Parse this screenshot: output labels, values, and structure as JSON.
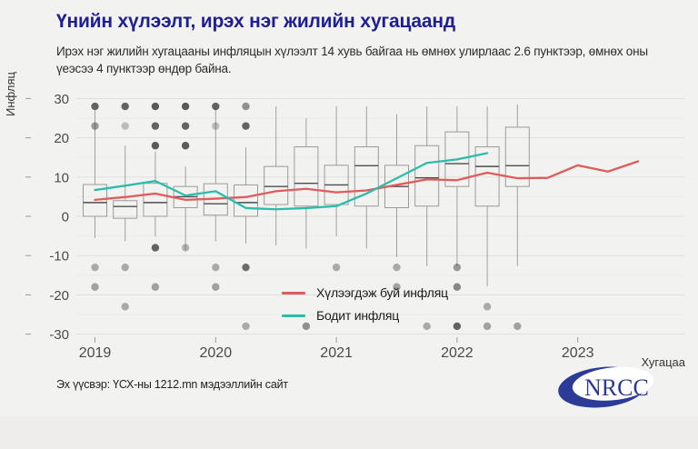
{
  "header": {
    "title": "Үнийн хүлээлт, ирэх нэг жилийн хугацаанд",
    "subtitle": "Ирэх нэг жилийн хугацааны инфляцын хүлээлт 14 хувь байгаа нь өмнөх улирлаас 2.6 пунктээр, өмнөх оны үеэсээ 4 пунктээр өндөр байна."
  },
  "footer": {
    "source": "Эх үүсвэр: ҮСХ-ны 1212.mn мэдээллийн сайт",
    "logo_text": "NRCC"
  },
  "colors": {
    "title": "#1f1f93",
    "expected_line": "#e05c5c",
    "actual_line": "#2bbcab",
    "box_stroke": "#9b9b9b",
    "median": "#4d4d4d",
    "dot": "#3f3f3f",
    "grid_major": "#e0e0df",
    "grid_minor": "#ebebea",
    "tick_text": "#4a4a4a",
    "logo_navy": "#2b3b96"
  },
  "chart_data": {
    "type": "boxplot+line",
    "title": "",
    "xlabel": "Хугацаа",
    "ylabel": "Инфляц",
    "ylim": [
      -30,
      30
    ],
    "y_ticks": [
      30,
      20,
      10,
      0,
      -10,
      -20,
      -30
    ],
    "y_minor_ticks": [
      25,
      15,
      5,
      -5,
      -15,
      -25
    ],
    "x_tick_labels": [
      "2019",
      "2020",
      "2021",
      "2022",
      "2023"
    ],
    "x_tick_quarter_index": [
      0,
      4,
      8,
      12,
      16
    ],
    "quarters": [
      "2019Q1",
      "2019Q2",
      "2019Q3",
      "2019Q4",
      "2020Q1",
      "2020Q2",
      "2020Q3",
      "2020Q4",
      "2021Q1",
      "2021Q2",
      "2021Q3",
      "2021Q4",
      "2022Q1",
      "2022Q2",
      "2022Q3"
    ],
    "boxplots": [
      {
        "quarter": "2019Q1",
        "whisker_low": -5.5,
        "q1": 0.0,
        "median": 3.5,
        "q3": 8.1,
        "whisker_high": 27.0
      },
      {
        "quarter": "2019Q2",
        "whisker_low": -6.3,
        "q1": -0.5,
        "median": 2.5,
        "q3": 4.0,
        "whisker_high": 18.0
      },
      {
        "quarter": "2019Q3",
        "whisker_low": -5.1,
        "q1": 0.0,
        "median": 3.5,
        "q3": 8.4,
        "whisker_high": 16.5
      },
      {
        "quarter": "2019Q4",
        "whisker_low": -8.6,
        "q1": 2.2,
        "median": 5.0,
        "q3": 7.6,
        "whisker_high": 12.7
      },
      {
        "quarter": "2020Q1",
        "whisker_low": -6.3,
        "q1": 0.3,
        "median": 3.2,
        "q3": 8.3,
        "whisker_high": 28.0
      },
      {
        "quarter": "2020Q2",
        "whisker_low": -7.0,
        "q1": 0.0,
        "median": 3.5,
        "q3": 8.0,
        "whisker_high": 17.5
      },
      {
        "quarter": "2020Q3",
        "whisker_low": -7.4,
        "q1": 3.0,
        "median": 7.6,
        "q3": 12.7,
        "whisker_high": 28.0
      },
      {
        "quarter": "2020Q4",
        "whisker_low": -8.2,
        "q1": 2.6,
        "median": 8.4,
        "q3": 17.7,
        "whisker_high": 25.0
      },
      {
        "quarter": "2021Q1",
        "whisker_low": -5.1,
        "q1": 3.0,
        "median": 8.0,
        "q3": 13.0,
        "whisker_high": 28.0
      },
      {
        "quarter": "2021Q2",
        "whisker_low": -8.2,
        "q1": 2.6,
        "median": 12.9,
        "q3": 17.7,
        "whisker_high": 28.0
      },
      {
        "quarter": "2021Q3",
        "whisker_low": -10.4,
        "q1": 2.2,
        "median": 7.6,
        "q3": 13.0,
        "whisker_high": 26.0
      },
      {
        "quarter": "2021Q4",
        "whisker_low": -12.7,
        "q1": 2.6,
        "median": 9.8,
        "q3": 18.0,
        "whisker_high": 28.0
      },
      {
        "quarter": "2022Q1",
        "whisker_low": -12.7,
        "q1": 7.6,
        "median": 13.4,
        "q3": 21.5,
        "whisker_high": 28.0
      },
      {
        "quarter": "2022Q2",
        "whisker_low": -17.8,
        "q1": 2.6,
        "median": 12.7,
        "q3": 17.7,
        "whisker_high": 28.0
      },
      {
        "quarter": "2022Q3",
        "whisker_low": -12.7,
        "q1": 7.6,
        "median": 12.9,
        "q3": 22.7,
        "whisker_high": 28.5
      }
    ],
    "outliers": [
      {
        "qi": 0,
        "value": 28,
        "shade": 0.8
      },
      {
        "qi": 1,
        "value": 28,
        "shade": 0.8
      },
      {
        "qi": 2,
        "value": 28,
        "shade": 0.85
      },
      {
        "qi": 3,
        "value": 28,
        "shade": 0.85
      },
      {
        "qi": 4,
        "value": 28,
        "shade": 0.8
      },
      {
        "qi": 5,
        "value": 28,
        "shade": 0.55
      },
      {
        "qi": 0,
        "value": 23,
        "shade": 0.5
      },
      {
        "qi": 1,
        "value": 23,
        "shade": 0.3
      },
      {
        "qi": 2,
        "value": 23,
        "shade": 0.8
      },
      {
        "qi": 3,
        "value": 23,
        "shade": 0.8
      },
      {
        "qi": 4,
        "value": 23,
        "shade": 0.3
      },
      {
        "qi": 5,
        "value": 23,
        "shade": 0.8
      },
      {
        "qi": 2,
        "value": 18,
        "shade": 0.85
      },
      {
        "qi": 3,
        "value": 18,
        "shade": 0.85
      },
      {
        "qi": 2,
        "value": -8,
        "shade": 0.8
      },
      {
        "qi": 3,
        "value": -8,
        "shade": 0.35
      },
      {
        "qi": 0,
        "value": -13,
        "shade": 0.4
      },
      {
        "qi": 1,
        "value": -13,
        "shade": 0.4
      },
      {
        "qi": 4,
        "value": -13,
        "shade": 0.4
      },
      {
        "qi": 5,
        "value": -13,
        "shade": 0.75
      },
      {
        "qi": 8,
        "value": -13,
        "shade": 0.4
      },
      {
        "qi": 10,
        "value": -13,
        "shade": 0.4
      },
      {
        "qi": 12,
        "value": -13,
        "shade": 0.5
      },
      {
        "qi": 0,
        "value": -18,
        "shade": 0.45
      },
      {
        "qi": 2,
        "value": -18,
        "shade": 0.45
      },
      {
        "qi": 4,
        "value": -18,
        "shade": 0.45
      },
      {
        "qi": 10,
        "value": -18,
        "shade": 0.45
      },
      {
        "qi": 12,
        "value": -18,
        "shade": 0.6
      },
      {
        "qi": 1,
        "value": -23,
        "shade": 0.4
      },
      {
        "qi": 13,
        "value": -23,
        "shade": 0.4
      },
      {
        "qi": 5,
        "value": -28,
        "shade": 0.4
      },
      {
        "qi": 7,
        "value": -28,
        "shade": 0.55
      },
      {
        "qi": 11,
        "value": -28,
        "shade": 0.4
      },
      {
        "qi": 12,
        "value": -28,
        "shade": 0.8
      },
      {
        "qi": 13,
        "value": -28,
        "shade": 0.45
      },
      {
        "qi": 14,
        "value": -28,
        "shade": 0.45
      }
    ],
    "series": [
      {
        "name": "Хүлээгдэж буй инфляц",
        "color": "#e05c5c",
        "quarters": [
          "2019Q1",
          "2019Q2",
          "2019Q3",
          "2019Q4",
          "2020Q1",
          "2020Q2",
          "2020Q3",
          "2020Q4",
          "2021Q1",
          "2021Q2",
          "2021Q3",
          "2021Q4",
          "2022Q1",
          "2022Q2",
          "2022Q3",
          "2022Q4",
          "2023Q1",
          "2023Q2",
          "2023Q3"
        ],
        "values": [
          4.2,
          4.9,
          5.8,
          4.2,
          4.5,
          4.9,
          6.4,
          7.0,
          6.1,
          6.6,
          8.0,
          9.4,
          9.2,
          11.1,
          9.7,
          9.8,
          13.0,
          11.4,
          14.0
        ]
      },
      {
        "name": "Бодит инфляц",
        "color": "#2bbcab",
        "quarters": [
          "2019Q1",
          "2019Q2",
          "2019Q3",
          "2019Q4",
          "2020Q1",
          "2020Q2",
          "2020Q3",
          "2020Q4",
          "2021Q1",
          "2021Q2",
          "2021Q3",
          "2021Q4",
          "2022Q1",
          "2022Q2"
        ],
        "values": [
          6.7,
          7.8,
          9.0,
          5.3,
          6.4,
          2.1,
          1.8,
          2.1,
          2.6,
          5.8,
          9.7,
          13.6,
          14.5,
          16.1
        ]
      }
    ],
    "legend_position": "inside-bottom-center",
    "grid": true
  }
}
